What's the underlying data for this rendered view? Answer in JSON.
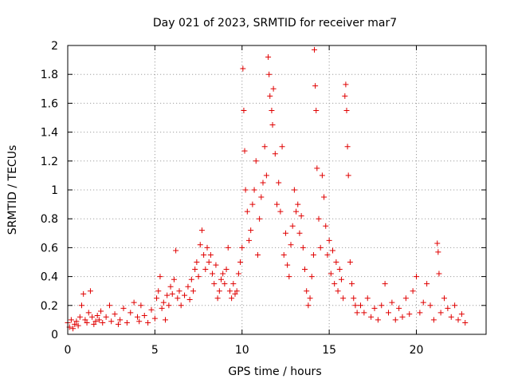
{
  "chart_data": {
    "type": "scatter",
    "title": "Day 021 of 2023, SRMTID for receiver mar7",
    "xlabel": "GPS time / hours",
    "ylabel": "SRMTID / TECUs",
    "xlim": [
      0,
      24
    ],
    "ylim": [
      0,
      2
    ],
    "xticks": [
      0,
      5,
      10,
      15,
      20
    ],
    "xtick_labels": [
      "0",
      "5",
      "10",
      "15",
      "20"
    ],
    "yticks": [
      0,
      0.2,
      0.4,
      0.6,
      0.8,
      1,
      1.2,
      1.4,
      1.6,
      1.8,
      2
    ],
    "ytick_labels": [
      "0",
      "0.2",
      "0.4",
      "0.6",
      "0.8",
      "1",
      "1.2",
      "1.4",
      "1.6",
      "1.8",
      "2"
    ],
    "grid": true,
    "marker": "+",
    "marker_color": "#e00000",
    "series": [
      {
        "name": "SRMTID",
        "points": [
          [
            0.0,
            0.08
          ],
          [
            0.1,
            0.05
          ],
          [
            0.2,
            0.1
          ],
          [
            0.3,
            0.04
          ],
          [
            0.4,
            0.07
          ],
          [
            0.5,
            0.09
          ],
          [
            0.6,
            0.06
          ],
          [
            0.7,
            0.12
          ],
          [
            0.8,
            0.2
          ],
          [
            0.9,
            0.28
          ],
          [
            1.0,
            0.1
          ],
          [
            1.1,
            0.08
          ],
          [
            1.2,
            0.15
          ],
          [
            1.3,
            0.3
          ],
          [
            1.4,
            0.12
          ],
          [
            1.5,
            0.07
          ],
          [
            1.6,
            0.09
          ],
          [
            1.7,
            0.13
          ],
          [
            1.8,
            0.1
          ],
          [
            1.9,
            0.16
          ],
          [
            2.0,
            0.08
          ],
          [
            2.2,
            0.12
          ],
          [
            2.4,
            0.2
          ],
          [
            2.5,
            0.09
          ],
          [
            2.7,
            0.14
          ],
          [
            2.9,
            0.07
          ],
          [
            3.0,
            0.1
          ],
          [
            3.2,
            0.18
          ],
          [
            3.4,
            0.08
          ],
          [
            3.6,
            0.15
          ],
          [
            3.8,
            0.22
          ],
          [
            4.0,
            0.12
          ],
          [
            4.1,
            0.09
          ],
          [
            4.2,
            0.2
          ],
          [
            4.4,
            0.13
          ],
          [
            4.6,
            0.08
          ],
          [
            4.8,
            0.17
          ],
          [
            5.0,
            0.11
          ],
          [
            5.1,
            0.25
          ],
          [
            5.2,
            0.3
          ],
          [
            5.3,
            0.4
          ],
          [
            5.4,
            0.18
          ],
          [
            5.5,
            0.22
          ],
          [
            5.6,
            0.1
          ],
          [
            5.7,
            0.27
          ],
          [
            5.8,
            0.2
          ],
          [
            5.9,
            0.33
          ],
          [
            6.0,
            0.28
          ],
          [
            6.1,
            0.38
          ],
          [
            6.2,
            0.58
          ],
          [
            6.3,
            0.25
          ],
          [
            6.4,
            0.3
          ],
          [
            6.5,
            0.2
          ],
          [
            6.7,
            0.27
          ],
          [
            6.9,
            0.33
          ],
          [
            7.0,
            0.24
          ],
          [
            7.1,
            0.38
          ],
          [
            7.2,
            0.3
          ],
          [
            7.3,
            0.45
          ],
          [
            7.4,
            0.5
          ],
          [
            7.5,
            0.4
          ],
          [
            7.6,
            0.62
          ],
          [
            7.7,
            0.72
          ],
          [
            7.8,
            0.55
          ],
          [
            7.9,
            0.45
          ],
          [
            8.0,
            0.6
          ],
          [
            8.1,
            0.5
          ],
          [
            8.2,
            0.55
          ],
          [
            8.3,
            0.42
          ],
          [
            8.4,
            0.35
          ],
          [
            8.5,
            0.48
          ],
          [
            8.6,
            0.25
          ],
          [
            8.7,
            0.3
          ],
          [
            8.8,
            0.38
          ],
          [
            8.9,
            0.42
          ],
          [
            9.0,
            0.35
          ],
          [
            9.1,
            0.45
          ],
          [
            9.2,
            0.6
          ],
          [
            9.3,
            0.3
          ],
          [
            9.4,
            0.25
          ],
          [
            9.5,
            0.35
          ],
          [
            9.6,
            0.28
          ],
          [
            9.7,
            0.3
          ],
          [
            9.8,
            0.42
          ],
          [
            9.9,
            0.5
          ],
          [
            10.0,
            0.6
          ],
          [
            10.05,
            1.84
          ],
          [
            10.1,
            1.55
          ],
          [
            10.15,
            1.27
          ],
          [
            10.2,
            1.0
          ],
          [
            10.3,
            0.85
          ],
          [
            10.4,
            0.65
          ],
          [
            10.5,
            0.72
          ],
          [
            10.6,
            0.9
          ],
          [
            10.7,
            1.0
          ],
          [
            10.8,
            1.2
          ],
          [
            10.9,
            0.55
          ],
          [
            11.0,
            0.8
          ],
          [
            11.1,
            0.95
          ],
          [
            11.2,
            1.05
          ],
          [
            11.3,
            1.3
          ],
          [
            11.4,
            1.1
          ],
          [
            11.5,
            1.92
          ],
          [
            11.55,
            1.8
          ],
          [
            11.6,
            1.65
          ],
          [
            11.7,
            1.55
          ],
          [
            11.75,
            1.45
          ],
          [
            11.8,
            1.7
          ],
          [
            11.9,
            1.25
          ],
          [
            12.0,
            0.9
          ],
          [
            12.1,
            1.05
          ],
          [
            12.2,
            0.85
          ],
          [
            12.3,
            1.3
          ],
          [
            12.4,
            0.55
          ],
          [
            12.5,
            0.7
          ],
          [
            12.6,
            0.48
          ],
          [
            12.7,
            0.4
          ],
          [
            12.8,
            0.62
          ],
          [
            12.9,
            0.75
          ],
          [
            13.0,
            1.0
          ],
          [
            13.1,
            0.85
          ],
          [
            13.2,
            0.9
          ],
          [
            13.3,
            0.7
          ],
          [
            13.4,
            0.82
          ],
          [
            13.5,
            0.6
          ],
          [
            13.6,
            0.45
          ],
          [
            13.7,
            0.3
          ],
          [
            13.8,
            0.2
          ],
          [
            13.9,
            0.25
          ],
          [
            14.0,
            0.4
          ],
          [
            14.1,
            0.55
          ],
          [
            14.15,
            1.97
          ],
          [
            14.2,
            1.72
          ],
          [
            14.25,
            1.55
          ],
          [
            14.3,
            1.15
          ],
          [
            14.4,
            0.8
          ],
          [
            14.5,
            0.6
          ],
          [
            14.6,
            1.1
          ],
          [
            14.7,
            0.95
          ],
          [
            14.8,
            0.75
          ],
          [
            14.9,
            0.55
          ],
          [
            15.0,
            0.65
          ],
          [
            15.1,
            0.42
          ],
          [
            15.2,
            0.58
          ],
          [
            15.3,
            0.35
          ],
          [
            15.4,
            0.5
          ],
          [
            15.5,
            0.3
          ],
          [
            15.6,
            0.45
          ],
          [
            15.7,
            0.38
          ],
          [
            15.8,
            0.25
          ],
          [
            15.9,
            1.65
          ],
          [
            15.95,
            1.73
          ],
          [
            16.0,
            1.55
          ],
          [
            16.05,
            1.3
          ],
          [
            16.1,
            1.1
          ],
          [
            16.2,
            0.5
          ],
          [
            16.3,
            0.35
          ],
          [
            16.4,
            0.25
          ],
          [
            16.5,
            0.2
          ],
          [
            16.6,
            0.15
          ],
          [
            16.8,
            0.2
          ],
          [
            17.0,
            0.15
          ],
          [
            17.2,
            0.25
          ],
          [
            17.4,
            0.12
          ],
          [
            17.6,
            0.18
          ],
          [
            17.8,
            0.1
          ],
          [
            18.0,
            0.2
          ],
          [
            18.2,
            0.35
          ],
          [
            18.4,
            0.15
          ],
          [
            18.6,
            0.22
          ],
          [
            18.8,
            0.1
          ],
          [
            19.0,
            0.18
          ],
          [
            19.2,
            0.12
          ],
          [
            19.4,
            0.25
          ],
          [
            19.6,
            0.14
          ],
          [
            19.8,
            0.3
          ],
          [
            20.0,
            0.4
          ],
          [
            20.2,
            0.15
          ],
          [
            20.4,
            0.22
          ],
          [
            20.6,
            0.35
          ],
          [
            20.8,
            0.2
          ],
          [
            21.0,
            0.1
          ],
          [
            21.2,
            0.63
          ],
          [
            21.25,
            0.57
          ],
          [
            21.3,
            0.42
          ],
          [
            21.4,
            0.15
          ],
          [
            21.6,
            0.25
          ],
          [
            21.8,
            0.18
          ],
          [
            22.0,
            0.12
          ],
          [
            22.2,
            0.2
          ],
          [
            22.4,
            0.1
          ],
          [
            22.6,
            0.14
          ],
          [
            22.8,
            0.08
          ]
        ]
      }
    ]
  }
}
